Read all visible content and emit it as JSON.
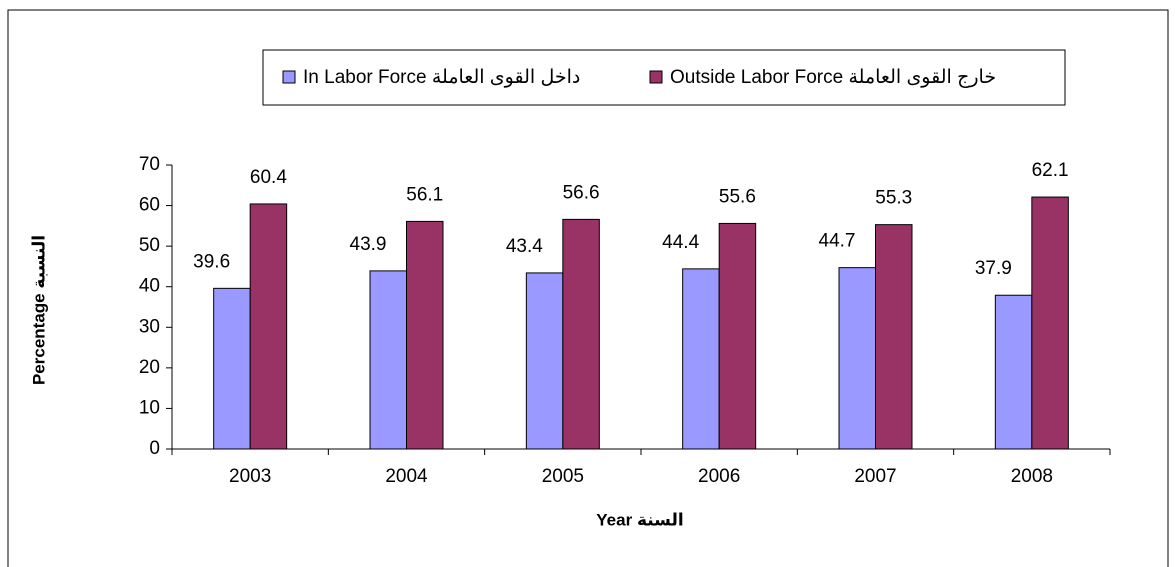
{
  "chart_data": {
    "type": "bar",
    "categories": [
      "2003",
      "2004",
      "2005",
      "2006",
      "2007",
      "2008"
    ],
    "series": [
      {
        "name": "In Labor Force داخل القوى العاملة",
        "color": "#9999ff",
        "values": [
          39.6,
          43.9,
          43.4,
          44.4,
          44.7,
          37.9
        ]
      },
      {
        "name": "Outside Labor Force خارج القوى العاملة",
        "color": "#993366",
        "values": [
          60.4,
          56.1,
          56.6,
          55.6,
          55.3,
          62.1
        ]
      }
    ],
    "xlabel": "Year السنة",
    "ylabel": "Percentage النسبة",
    "ylim": [
      0,
      70
    ],
    "yticks": [
      0,
      10,
      20,
      30,
      40,
      50,
      60,
      70
    ],
    "legend": "top"
  }
}
